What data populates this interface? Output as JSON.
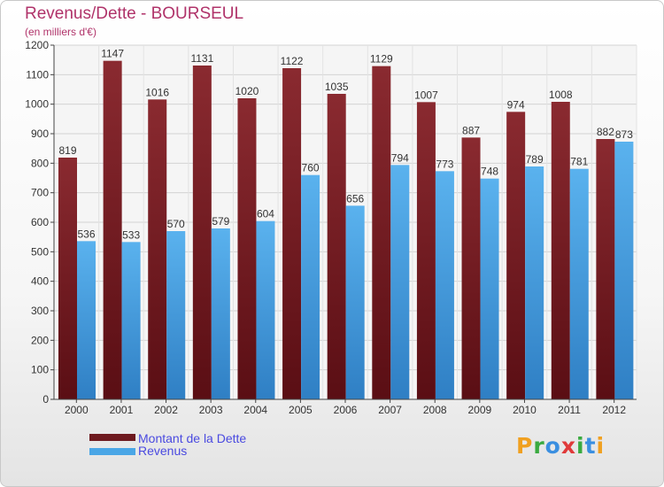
{
  "title": "Revenus/Dette - BOURSEUL",
  "subtitle": "(en milliers d'€)",
  "logo_text": "Proxiti",
  "colors": {
    "dette": "#6e1a1f",
    "revenus": "#4aa6e6",
    "title": "#b0336a",
    "legend_text": "#4a4ae0"
  },
  "legend": [
    {
      "label": "Montant de la Dette",
      "color": "#6e1a1f"
    },
    {
      "label": "Revenus",
      "color": "#4aa6e6"
    }
  ],
  "chart_data": {
    "type": "bar",
    "title": "Revenus/Dette - BOURSEUL",
    "subtitle": "(en milliers d'€)",
    "categories": [
      "2000",
      "2001",
      "2002",
      "2003",
      "2004",
      "2005",
      "2006",
      "2007",
      "2008",
      "2009",
      "2010",
      "2011",
      "2012"
    ],
    "series": [
      {
        "name": "Montant de la Dette",
        "values": [
          819,
          1147,
          1016,
          1131,
          1020,
          1122,
          1035,
          1129,
          1007,
          887,
          974,
          1008,
          882
        ]
      },
      {
        "name": "Revenus",
        "values": [
          536,
          533,
          570,
          579,
          604,
          760,
          656,
          794,
          773,
          748,
          789,
          781,
          873
        ]
      }
    ],
    "ylim": [
      0,
      1200
    ],
    "yticks": [
      0,
      100,
      200,
      300,
      400,
      500,
      600,
      700,
      800,
      900,
      1000,
      1100,
      1200
    ],
    "grid": true,
    "legend_position": "bottom-left"
  }
}
